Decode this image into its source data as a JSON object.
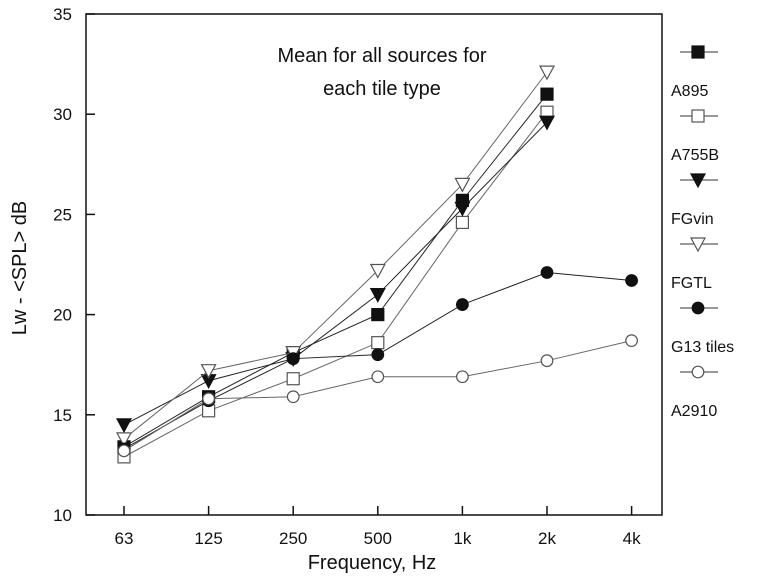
{
  "chart_data": {
    "type": "line",
    "title": "",
    "annotation": [
      "Mean for all sources for",
      "each tile type"
    ],
    "xlabel": "Frequency, Hz",
    "ylabel": "Lw - <SPL> dB",
    "categories": [
      "63",
      "125",
      "250",
      "500",
      "1k",
      "2k",
      "4k"
    ],
    "ylim": [
      10,
      35
    ],
    "yticks": [
      10,
      15,
      20,
      25,
      30,
      35
    ],
    "grid": false,
    "legend_position": "right",
    "series": [
      {
        "name": "A895",
        "marker": "square",
        "filled": true,
        "values": [
          13.4,
          15.9,
          18.1,
          20.0,
          25.7,
          31.0,
          null
        ]
      },
      {
        "name": "A755B",
        "marker": "square",
        "filled": false,
        "values": [
          12.9,
          15.2,
          16.8,
          18.6,
          24.6,
          30.1,
          null
        ]
      },
      {
        "name": "FGvin",
        "marker": "triangle-down",
        "filled": true,
        "values": [
          14.5,
          16.7,
          17.8,
          21.0,
          25.3,
          29.6,
          null
        ]
      },
      {
        "name": "FGTL",
        "marker": "triangle-down",
        "filled": false,
        "values": [
          13.8,
          17.2,
          18.1,
          22.2,
          26.5,
          32.1,
          null
        ]
      },
      {
        "name": "G13 tiles",
        "marker": "circle",
        "filled": true,
        "values": [
          13.3,
          15.7,
          17.8,
          18.0,
          20.5,
          22.1,
          21.7
        ]
      },
      {
        "name": "A2910",
        "marker": "circle",
        "filled": false,
        "values": [
          13.2,
          15.8,
          15.9,
          16.9,
          16.9,
          17.7,
          18.7
        ]
      }
    ]
  }
}
